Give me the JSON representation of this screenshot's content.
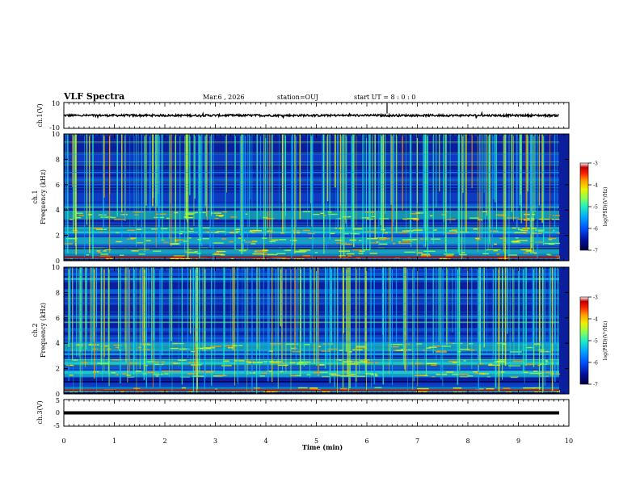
{
  "header": {
    "title": "VLF Spectra",
    "date": "Mar.6 , 2026",
    "station": "station=OUJ",
    "start": "start UT =  8 : 0  : 0"
  },
  "colors": {
    "spectrogram_bg": "#0a1e9e",
    "trace": "#000000",
    "colormap": [
      "#3d0000",
      "#c00000",
      "#ff2000",
      "#ff9a00",
      "#f0f000",
      "#8cff50",
      "#20f0c0",
      "#00a8ff",
      "#0050ff",
      "#0010a0",
      "#000040"
    ]
  },
  "chart_data": [
    {
      "type": "line",
      "name": "ch1-waveform",
      "ylabel": "ch.1(V)",
      "ylim": [
        -10,
        10
      ],
      "yticks": [
        "10",
        "-10"
      ],
      "mean_level": 0,
      "description_of_series": "noise band near 0 V"
    },
    {
      "type": "heatmap",
      "name": "ch1-spectrogram",
      "ylabel": "ch.1\nFrequency (kHz)",
      "ylim": [
        0,
        10
      ],
      "yticks": [
        "0",
        "2",
        "4",
        "6",
        "8",
        "10"
      ],
      "bands_khz": [
        0.3,
        0.8,
        1.6,
        2.4,
        3.6
      ],
      "colorbar": {
        "label": "log(PSD)(V²/Hz)",
        "range": [
          -7,
          -3
        ],
        "ticks": [
          "-3",
          "-4",
          "-5",
          "-6",
          "-7"
        ]
      }
    },
    {
      "type": "heatmap",
      "name": "ch2-spectrogram",
      "ylabel": "ch.2\nFrequency (kHz)",
      "ylim": [
        0,
        10
      ],
      "yticks": [
        "0",
        "2",
        "4",
        "6",
        "8",
        "10"
      ],
      "bands_khz": [
        0.3,
        1.6,
        2.5,
        3.7
      ],
      "colorbar": {
        "label": "log(PSD)(V²/Hz)",
        "range": [
          -7,
          -3
        ],
        "ticks": [
          "-3",
          "-4",
          "-5",
          "-6",
          "-7"
        ]
      }
    },
    {
      "type": "line",
      "name": "ch3-waveform",
      "ylabel": "ch.3(V)",
      "ylim": [
        -5,
        5
      ],
      "yticks": [
        "5",
        "0",
        "-5"
      ],
      "mean_level": 0,
      "description_of_series": "flat line near 0 V"
    }
  ],
  "xaxis": {
    "label": "Time (min)",
    "range": [
      0,
      10
    ],
    "ticks": [
      "0",
      "1",
      "2",
      "3",
      "4",
      "5",
      "6",
      "7",
      "8",
      "9",
      "10"
    ]
  }
}
